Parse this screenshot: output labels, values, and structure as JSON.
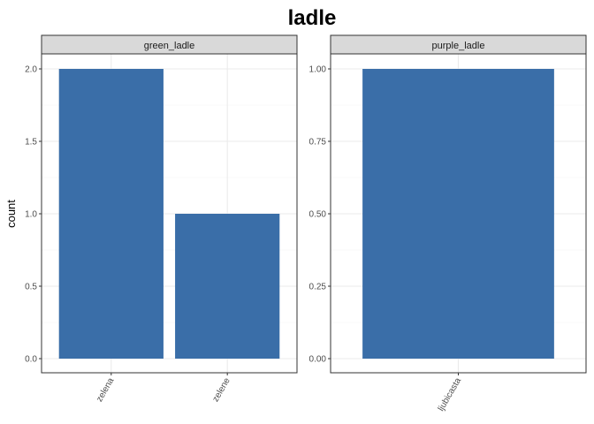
{
  "chart_data": {
    "type": "bar",
    "title": "ladle",
    "ylabel": "count",
    "xlabel": "",
    "bar_color": "#3a6ea8",
    "grid": true,
    "facets": [
      {
        "strip_label": "green_ladle",
        "categories": [
          "zelena",
          "zelene"
        ],
        "values": [
          2,
          1
        ],
        "ylim": [
          0,
          2
        ],
        "yticks": [
          "0.0",
          "0.5",
          "1.0",
          "1.5",
          "2.0"
        ]
      },
      {
        "strip_label": "purple_ladle",
        "categories": [
          "ljubicasta"
        ],
        "values": [
          1
        ],
        "ylim": [
          0,
          1
        ],
        "yticks": [
          "0.00",
          "0.25",
          "0.50",
          "0.75",
          "1.00"
        ]
      }
    ]
  }
}
